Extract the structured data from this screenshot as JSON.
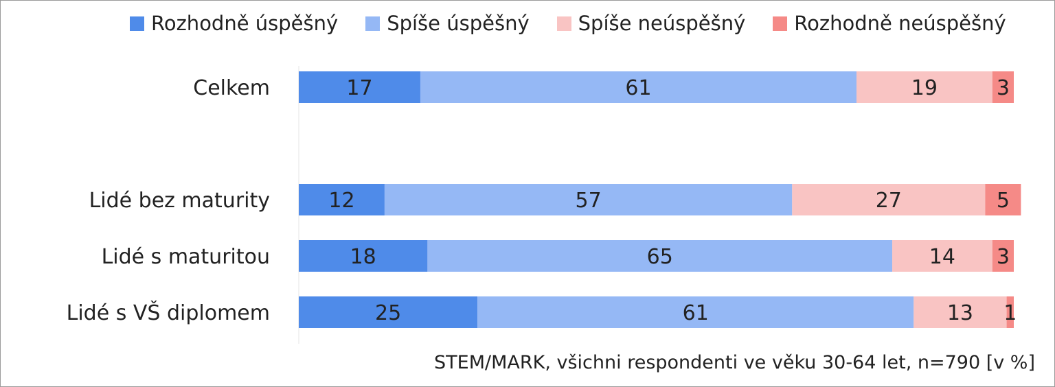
{
  "chart_data": {
    "type": "bar",
    "orientation": "horizontal",
    "stacked": true,
    "categories": [
      "Celkem",
      "Lidé bez maturity",
      "Lidé s maturitou",
      "Lidé s VŠ diplomem"
    ],
    "series": [
      {
        "name": "Rozhodně úspěšný",
        "color": "#4f8be9",
        "values": [
          17,
          12,
          18,
          25
        ]
      },
      {
        "name": "Spíše úspěšný",
        "color": "#95b8f5",
        "values": [
          61,
          57,
          65,
          61
        ]
      },
      {
        "name": "Spíše neúspěšný",
        "color": "#f9c4c3",
        "values": [
          19,
          27,
          14,
          13
        ]
      },
      {
        "name": "Rozhodně neúspěšný",
        "color": "#f58a87",
        "values": [
          3,
          5,
          3,
          1
        ]
      }
    ],
    "xlim": [
      0,
      100
    ],
    "legend_position": "top",
    "grid": false,
    "source": "STEM/MARK, všichni respondenti ve věku 30-64 let, n=790 [v %]"
  }
}
